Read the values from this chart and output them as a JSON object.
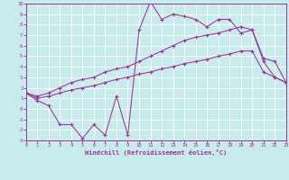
{
  "xlabel": "Windchill (Refroidissement éolien,°C)",
  "xlim": [
    0,
    23
  ],
  "ylim": [
    -3,
    10
  ],
  "xticks": [
    0,
    1,
    2,
    3,
    4,
    5,
    6,
    7,
    8,
    9,
    10,
    11,
    12,
    13,
    14,
    15,
    16,
    17,
    18,
    19,
    20,
    21,
    22,
    23
  ],
  "yticks": [
    -3,
    -2,
    -1,
    0,
    1,
    2,
    3,
    4,
    5,
    6,
    7,
    8,
    9,
    10
  ],
  "bg_color": "#c8ecec",
  "line_color": "#993399",
  "grid_color": "#ffffff",
  "line1_x": [
    0,
    1,
    2,
    3,
    4,
    5,
    6,
    7,
    8,
    9,
    10,
    11,
    12,
    13,
    14,
    15,
    16,
    17,
    18,
    19,
    20,
    21,
    22,
    23
  ],
  "line1_y": [
    1.5,
    0.8,
    0.3,
    -1.5,
    -1.5,
    -2.8,
    -1.5,
    -2.5,
    1.2,
    -2.5,
    7.5,
    10.2,
    8.5,
    9.0,
    8.8,
    8.5,
    7.8,
    8.5,
    8.5,
    7.2,
    7.5,
    4.5,
    3.0,
    2.5
  ],
  "line2_x": [
    0,
    1,
    2,
    3,
    4,
    5,
    6,
    7,
    8,
    9,
    10,
    11,
    12,
    13,
    14,
    15,
    16,
    17,
    18,
    19,
    20,
    21,
    22,
    23
  ],
  "line2_y": [
    1.5,
    1.2,
    1.5,
    2.0,
    2.5,
    2.8,
    3.0,
    3.5,
    3.8,
    4.0,
    4.5,
    5.0,
    5.5,
    6.0,
    6.5,
    6.8,
    7.0,
    7.2,
    7.5,
    7.8,
    7.5,
    4.8,
    4.5,
    2.5
  ],
  "line3_x": [
    0,
    1,
    2,
    3,
    4,
    5,
    6,
    7,
    8,
    9,
    10,
    11,
    12,
    13,
    14,
    15,
    16,
    17,
    18,
    19,
    20,
    21,
    22,
    23
  ],
  "line3_y": [
    1.5,
    1.0,
    1.2,
    1.5,
    1.8,
    2.0,
    2.2,
    2.5,
    2.8,
    3.0,
    3.3,
    3.5,
    3.8,
    4.0,
    4.3,
    4.5,
    4.7,
    5.0,
    5.2,
    5.5,
    5.5,
    3.5,
    3.0,
    2.5
  ]
}
